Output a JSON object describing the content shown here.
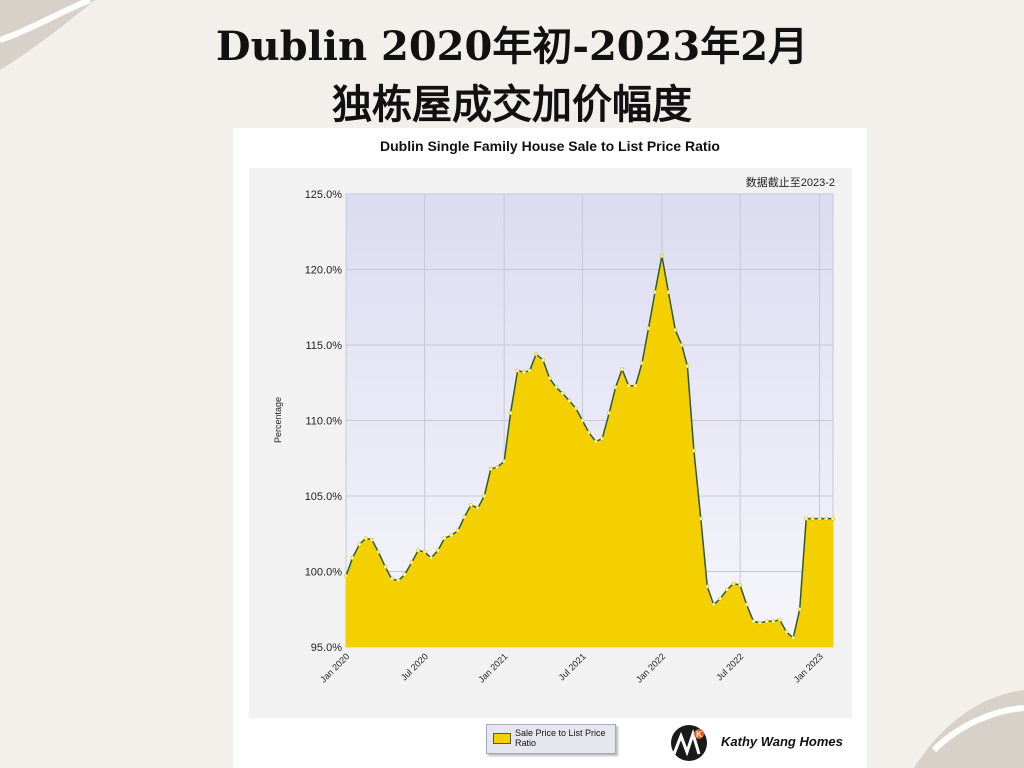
{
  "page": {
    "title_line1": "Dublin 2020年初-2023年2月",
    "title_line2": "独栋屋成交加价幅度"
  },
  "brand": {
    "name": "Kathy Wang Homes",
    "logo_letters": "K"
  },
  "chart_data": {
    "type": "area",
    "title": "Dublin Single Family House Sale to List Price Ratio",
    "annotation": "数据截止至2023-2",
    "ylabel": "Percentage",
    "xlabel": "",
    "ylim": [
      95,
      125
    ],
    "yticks": [
      95,
      100,
      105,
      110,
      115,
      120,
      125
    ],
    "ytick_labels": [
      "95.0%",
      "100.0%",
      "105.0%",
      "110.0%",
      "115.0%",
      "120.0%",
      "125.0%"
    ],
    "xtick_labels": [
      "Jan 2020",
      "Jul 2020",
      "Jan 2021",
      "Jul 2021",
      "Jan 2022",
      "Jul 2022",
      "Jan 2023"
    ],
    "xtick_dates": [
      "2020-01-01",
      "2020-07-01",
      "2021-01-01",
      "2021-07-01",
      "2022-01-01",
      "2022-07-01",
      "2023-01-01"
    ],
    "grid": true,
    "legend_position": "bottom",
    "series": [
      {
        "name": "Sale Price to List Price Ratio",
        "color": "#f5d000",
        "line_color": "#2e5a3a",
        "x": [
          "2020-01-01",
          "2020-01-16",
          "2020-02-01",
          "2020-02-16",
          "2020-03-01",
          "2020-03-16",
          "2020-04-01",
          "2020-04-16",
          "2020-05-01",
          "2020-05-16",
          "2020-06-01",
          "2020-06-16",
          "2020-07-01",
          "2020-07-16",
          "2020-08-01",
          "2020-08-16",
          "2020-09-01",
          "2020-09-16",
          "2020-10-01",
          "2020-10-16",
          "2020-11-01",
          "2020-11-16",
          "2020-12-01",
          "2020-12-16",
          "2021-01-01",
          "2021-01-16",
          "2021-02-01",
          "2021-02-16",
          "2021-03-01",
          "2021-03-16",
          "2021-04-01",
          "2021-04-16",
          "2021-05-01",
          "2021-05-16",
          "2021-06-01",
          "2021-06-16",
          "2021-07-01",
          "2021-07-16",
          "2021-08-01",
          "2021-08-16",
          "2021-09-01",
          "2021-09-16",
          "2021-10-01",
          "2021-10-16",
          "2021-11-01",
          "2021-11-16",
          "2021-12-01",
          "2021-12-16",
          "2022-01-01",
          "2022-01-16",
          "2022-02-01",
          "2022-02-16",
          "2022-03-01",
          "2022-03-16",
          "2022-04-01",
          "2022-04-16",
          "2022-05-01",
          "2022-05-16",
          "2022-06-01",
          "2022-06-16",
          "2022-07-01",
          "2022-07-16",
          "2022-08-01",
          "2022-08-16",
          "2022-09-01",
          "2022-09-16",
          "2022-10-01",
          "2022-10-16",
          "2022-11-01",
          "2022-11-16",
          "2022-12-01",
          "2022-12-16",
          "2023-01-01",
          "2023-01-16",
          "2023-02-01"
        ],
        "values": [
          99.7,
          100.9,
          101.8,
          102.2,
          102.1,
          101.3,
          100.3,
          99.5,
          99.4,
          99.8,
          100.6,
          101.4,
          101.3,
          100.9,
          101.4,
          102.2,
          102.4,
          102.7,
          103.6,
          104.4,
          104.2,
          105.0,
          106.8,
          106.9,
          107.3,
          110.5,
          113.3,
          113.2,
          113.3,
          114.4,
          114.0,
          112.8,
          112.2,
          111.8,
          111.3,
          110.8,
          110.0,
          109.2,
          108.6,
          108.8,
          110.5,
          112.2,
          113.4,
          112.3,
          112.3,
          113.8,
          116.1,
          118.5,
          120.9,
          118.5,
          116.0,
          115.0,
          113.6,
          108.0,
          103.5,
          99.0,
          97.8,
          98.2,
          98.8,
          99.2,
          99.1,
          97.8,
          96.7,
          96.6,
          96.7,
          96.7,
          96.8,
          96.0,
          95.6,
          97.5,
          103.5,
          103.5,
          103.5,
          103.5,
          103.5
        ]
      }
    ]
  }
}
